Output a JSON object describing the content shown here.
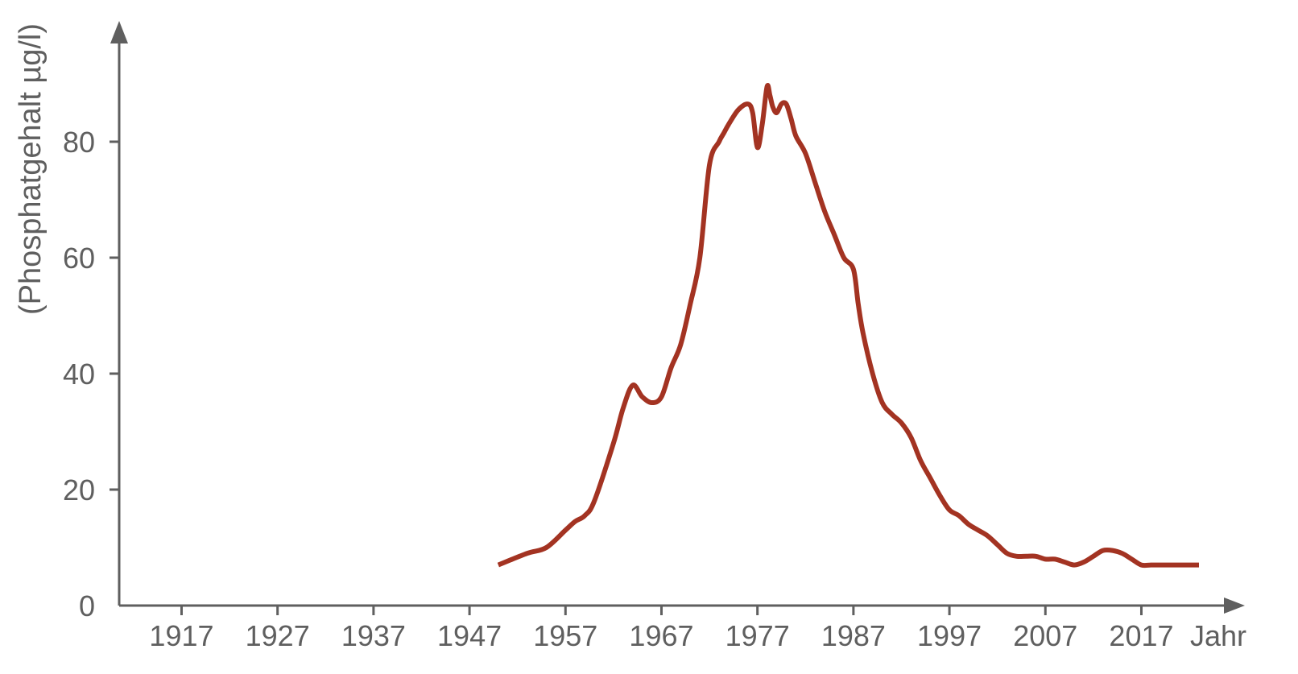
{
  "chart_data": {
    "type": "line",
    "xlabel": "Jahr",
    "ylabel": "(Phosphatgehalt µg/l)",
    "xlim": [
      1910.5,
      2030
    ],
    "ylim": [
      0,
      88
    ],
    "x_ticks": [
      1917,
      1927,
      1937,
      1947,
      1957,
      1967,
      1977,
      1987,
      1997,
      2007,
      2017
    ],
    "y_ticks": [
      0,
      20,
      40,
      60,
      80
    ],
    "grid": false,
    "legend": "none",
    "colors": {
      "axis": "#5f5f5f",
      "series": "#a33322"
    },
    "series": [
      {
        "x": [
          1950,
          1953,
          1955,
          1957,
          1958,
          1959,
          1960,
          1962,
          1963,
          1964,
          1965,
          1966,
          1967,
          1968,
          1969,
          1970,
          1971,
          1972,
          1973,
          1973.5,
          1974,
          1975,
          1976,
          1976.5,
          1977,
          1977.5,
          1978,
          1978.3,
          1978.6,
          1979,
          1979.5,
          1980,
          1980.5,
          1981,
          1982,
          1983,
          1984,
          1985,
          1986,
          1987,
          1987.5,
          1988,
          1989,
          1990,
          1991,
          1992,
          1993,
          1994,
          1995,
          1996,
          1997,
          1998,
          1999,
          2000,
          2001,
          2002,
          2003,
          2004,
          2005,
          2006,
          2007,
          2008,
          2009,
          2010,
          2011,
          2012,
          2013,
          2014,
          2015,
          2016,
          2017,
          2018,
          2019,
          2020,
          2021,
          2022,
          2023
        ],
        "y": [
          7,
          9,
          10,
          13,
          14.5,
          15.5,
          18,
          28,
          34,
          38,
          36,
          35,
          36,
          41,
          45,
          52,
          60,
          76,
          80,
          81.5,
          83,
          85.5,
          86.5,
          85,
          79,
          83,
          89.5,
          88,
          86,
          85,
          86.5,
          86.5,
          84,
          81,
          78,
          73,
          68,
          64,
          60,
          58,
          52,
          47,
          40,
          35,
          33,
          31.5,
          29,
          25,
          22,
          19,
          16.5,
          15.5,
          14,
          13,
          12,
          10.5,
          9,
          8.5,
          8.5,
          8.5,
          8,
          8,
          7.5,
          7,
          7.5,
          8.5,
          9.5,
          9.5,
          9,
          8,
          7,
          7,
          7,
          7,
          7,
          7,
          7
        ]
      }
    ]
  }
}
